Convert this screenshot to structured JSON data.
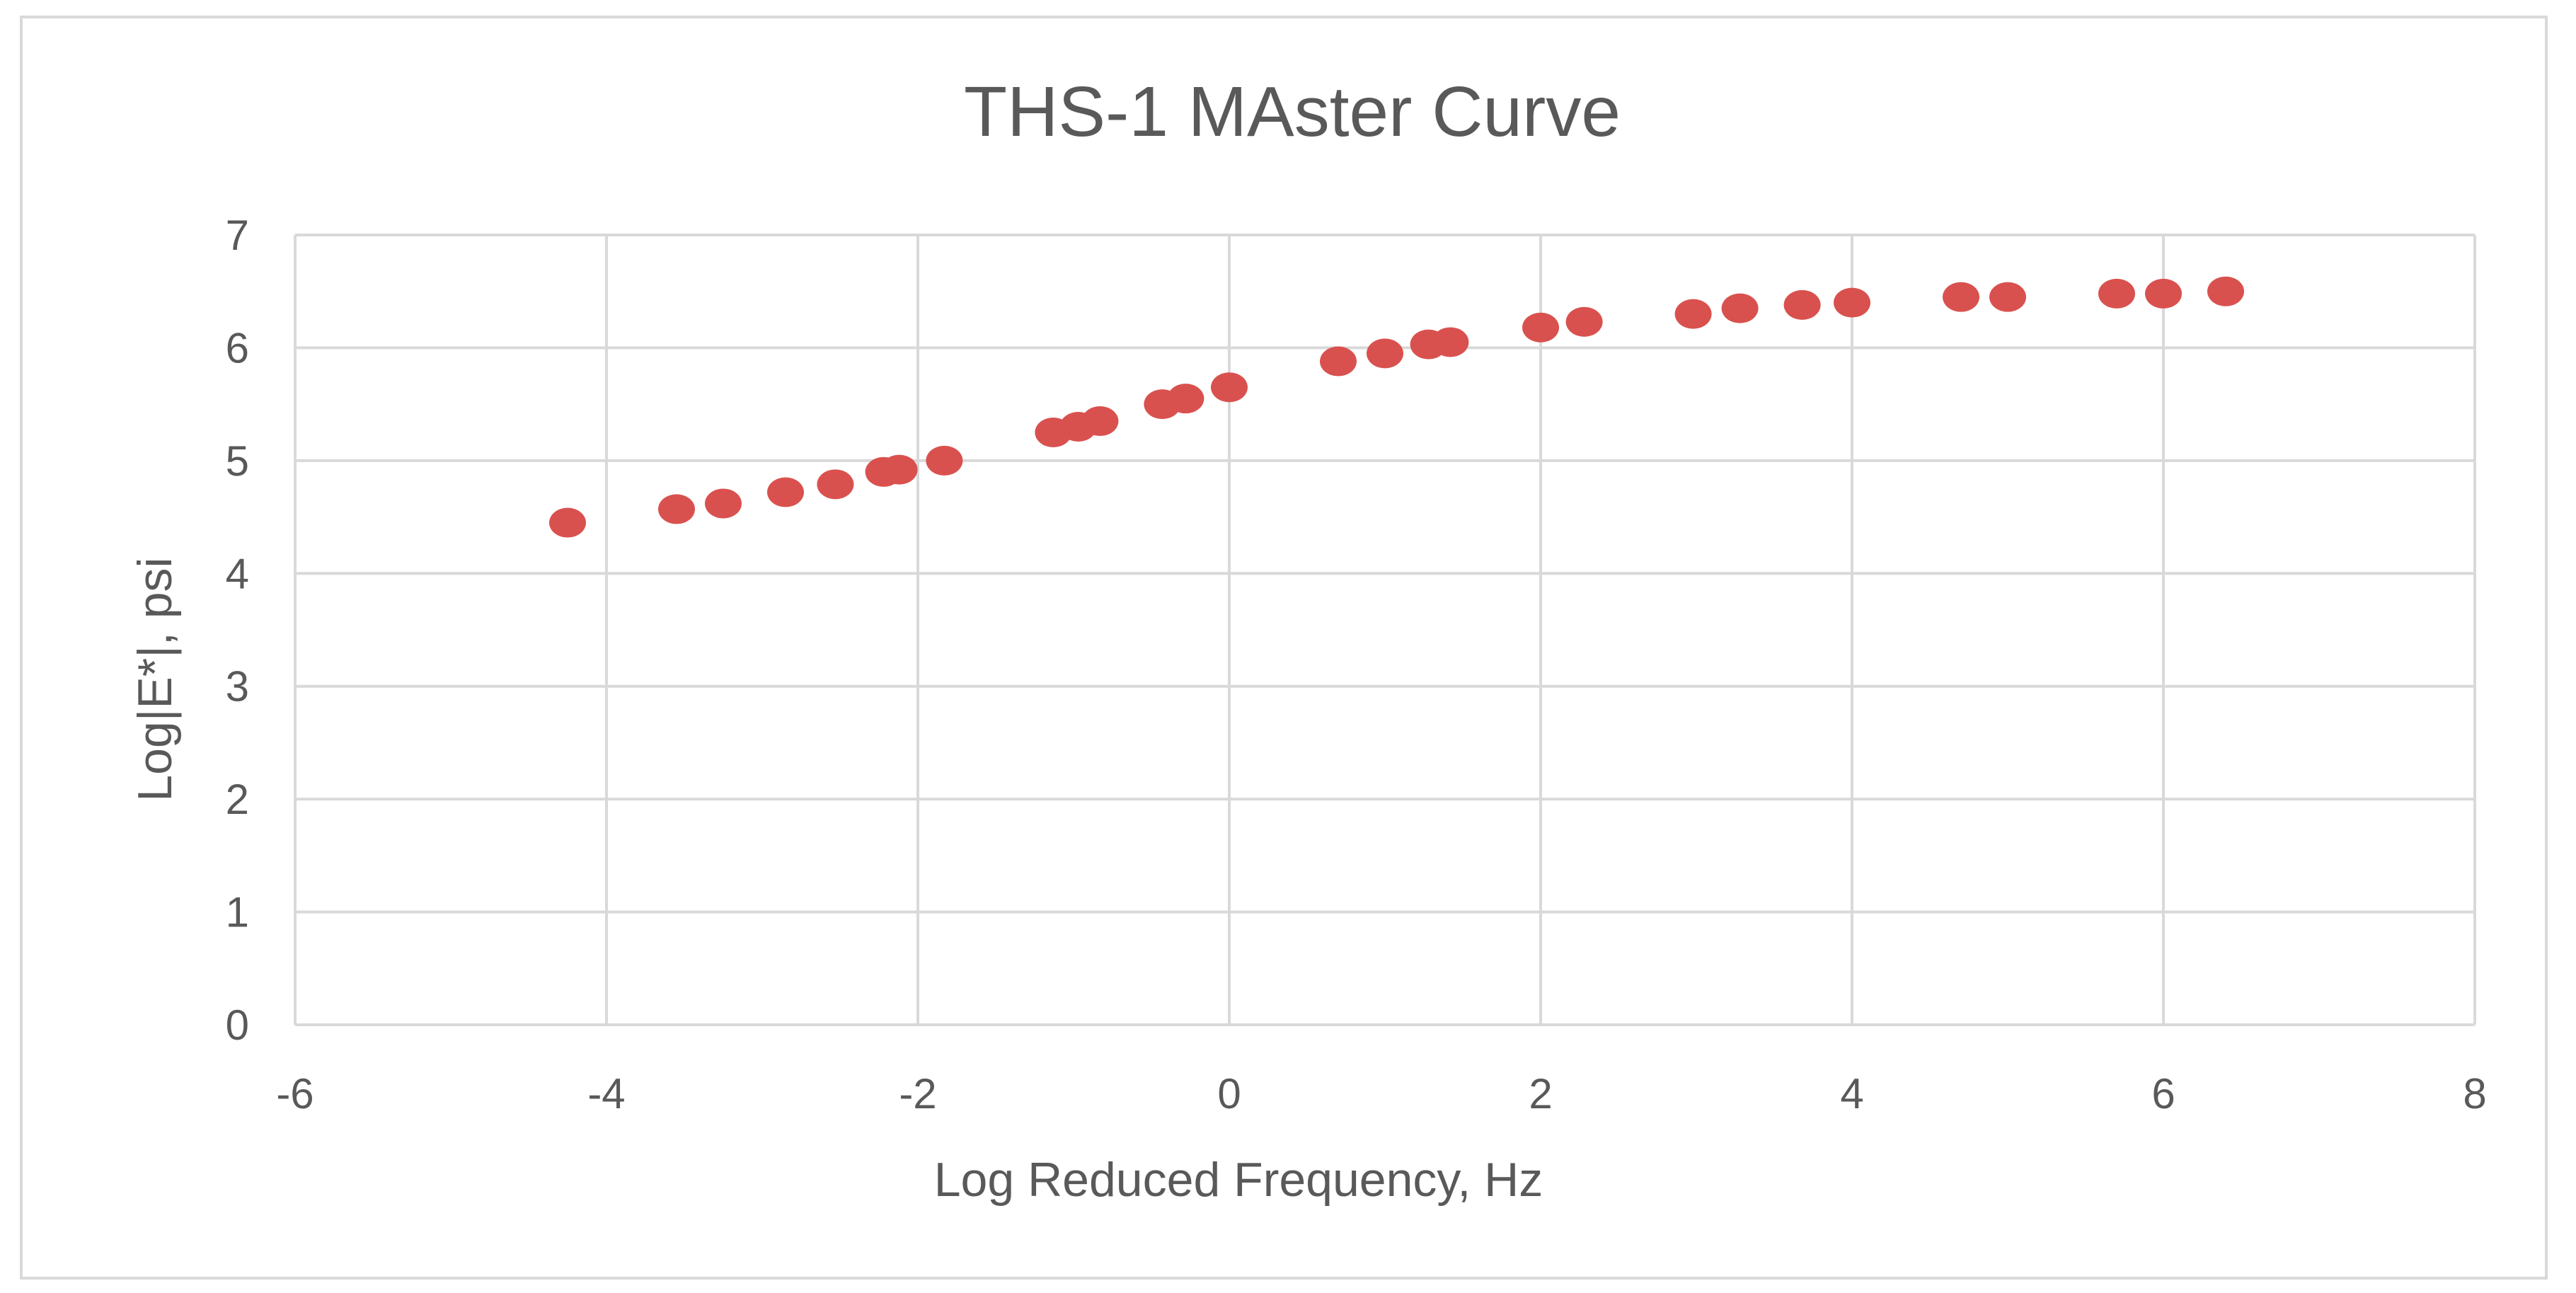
{
  "chart_data": {
    "type": "scatter",
    "title": "THS-1 MAster Curve",
    "xlabel": "Log Reduced  Frequency, Hz",
    "ylabel": "Log|E*|, psi",
    "xlim": [
      -6,
      8
    ],
    "ylim": [
      0,
      7
    ],
    "x_ticks": [
      "-6",
      "-4",
      "-2",
      "0",
      "2",
      "4",
      "6",
      "8"
    ],
    "y_ticks": [
      "0",
      "1",
      "2",
      "3",
      "4",
      "5",
      "6",
      "7"
    ],
    "grid": true,
    "legend": "none",
    "marker_color": "#d9514e",
    "gridline_color": "#d9d9d9",
    "series": [
      {
        "points": [
          [
            -4.25,
            4.45
          ],
          [
            -3.55,
            4.57
          ],
          [
            -3.25,
            4.62
          ],
          [
            -2.85,
            4.72
          ],
          [
            -2.53,
            4.79
          ],
          [
            -2.22,
            4.9
          ],
          [
            -2.12,
            4.92
          ],
          [
            -1.83,
            5.0
          ],
          [
            -1.13,
            5.25
          ],
          [
            -0.97,
            5.3
          ],
          [
            -0.83,
            5.35
          ],
          [
            -0.43,
            5.5
          ],
          [
            -0.28,
            5.55
          ],
          [
            0.0,
            5.65
          ],
          [
            0.7,
            5.88
          ],
          [
            1.0,
            5.95
          ],
          [
            1.28,
            6.03
          ],
          [
            1.42,
            6.05
          ],
          [
            2.0,
            6.18
          ],
          [
            2.28,
            6.23
          ],
          [
            2.98,
            6.3
          ],
          [
            3.28,
            6.35
          ],
          [
            3.68,
            6.38
          ],
          [
            4.0,
            6.4
          ],
          [
            4.7,
            6.45
          ],
          [
            5.0,
            6.45
          ],
          [
            5.7,
            6.48
          ],
          [
            6.0,
            6.48
          ],
          [
            6.4,
            6.5
          ]
        ]
      }
    ]
  }
}
